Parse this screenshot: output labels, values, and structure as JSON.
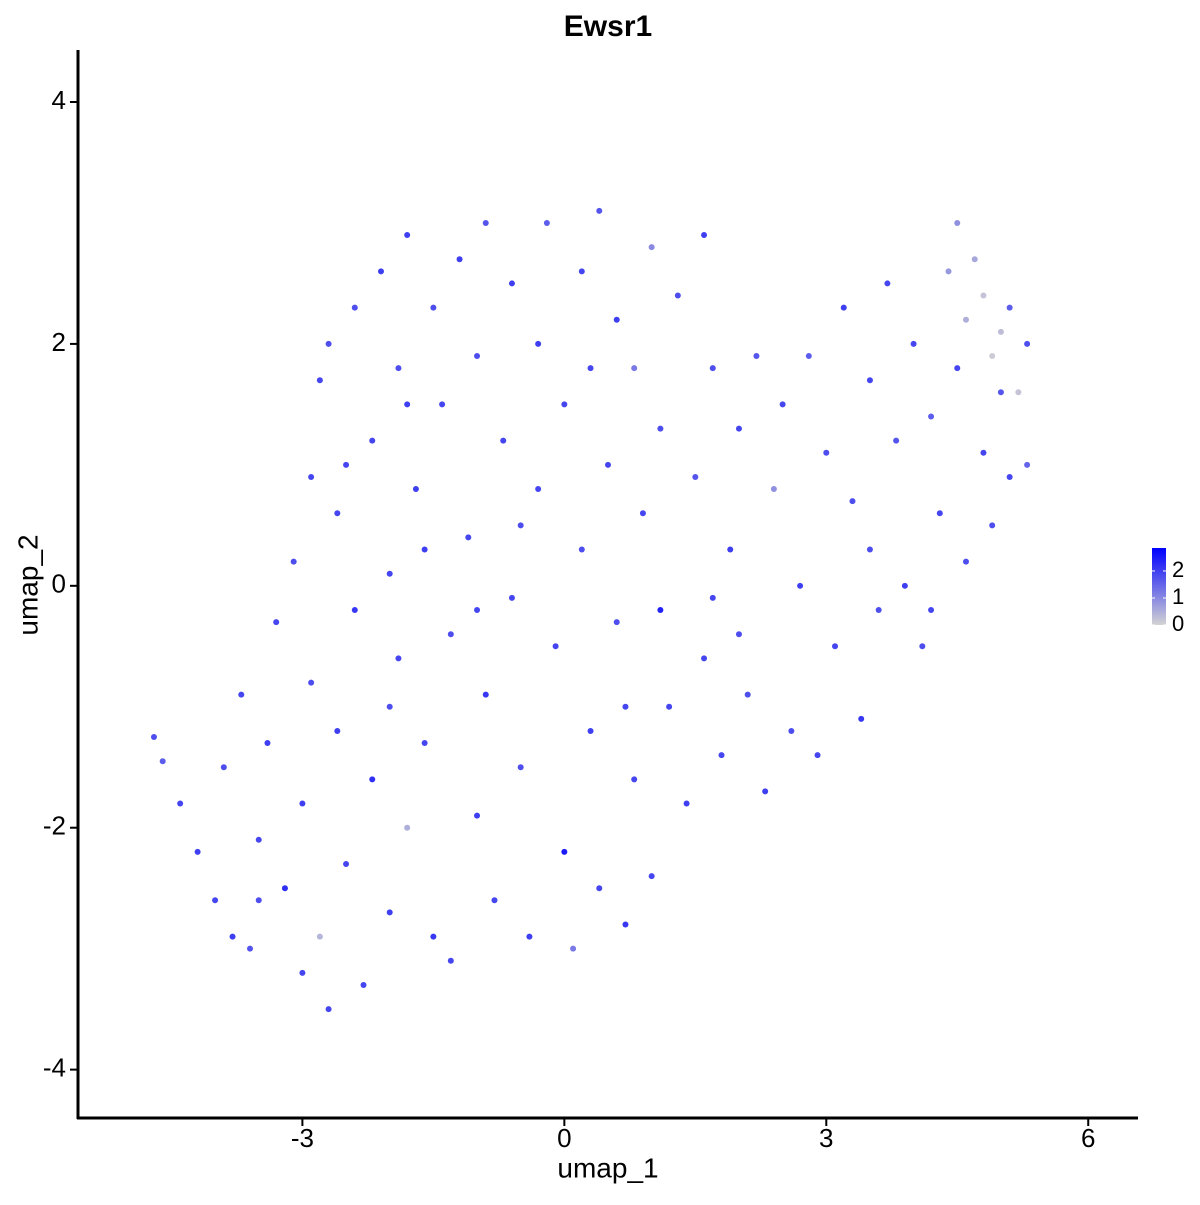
{
  "chart_data": {
    "type": "scatter",
    "title": "Ewsr1",
    "x_label": "umap_1",
    "y_label": "umap_2",
    "xlim": [
      -5.57,
      6.57
    ],
    "ylim": [
      -4.4,
      4.43
    ],
    "xticks": [
      -3,
      0,
      3,
      6
    ],
    "yticks": [
      -4,
      -2,
      0,
      2,
      4
    ],
    "low_color": "#d3d3d3",
    "high_color": "#0000ff",
    "color_lim": [
      0,
      2.85
    ],
    "color_ticks": [
      0,
      1,
      2
    ],
    "x": [
      -4.7,
      -4.6,
      -4.4,
      -4.2,
      -4.0,
      -3.9,
      -3.8,
      -3.6,
      -3.5,
      -3.4,
      -3.3,
      -3.2,
      -3.1,
      -3.0,
      -3.0,
      -2.9,
      -2.9,
      -2.8,
      -2.8,
      -2.7,
      -2.6,
      -2.6,
      -2.5,
      -2.4,
      -2.4,
      -2.3,
      -2.2,
      -2.2,
      -2.1,
      -2.0,
      -2.0,
      -1.9,
      -1.9,
      -1.8,
      -1.8,
      -1.7,
      -1.6,
      -1.5,
      -1.5,
      -1.4,
      -1.3,
      -1.3,
      -1.2,
      -1.1,
      -1.0,
      -1.0,
      -0.9,
      -0.9,
      -0.8,
      -0.7,
      -0.6,
      -0.6,
      -0.5,
      -0.4,
      -0.3,
      -0.3,
      -0.2,
      -0.1,
      0.0,
      0.0,
      0.1,
      0.2,
      0.2,
      0.3,
      0.4,
      0.4,
      0.5,
      0.6,
      0.6,
      0.7,
      0.8,
      0.8,
      0.9,
      1.0,
      1.0,
      1.1,
      1.1,
      1.2,
      1.3,
      1.4,
      1.5,
      1.6,
      1.6,
      1.7,
      1.8,
      1.9,
      2.0,
      2.1,
      2.2,
      2.3,
      2.4,
      2.5,
      2.6,
      2.7,
      2.8,
      2.9,
      3.0,
      3.1,
      3.2,
      3.3,
      3.4,
      3.5,
      3.6,
      3.7,
      3.8,
      3.9,
      4.0,
      4.1,
      4.2,
      4.3,
      4.4,
      4.5,
      4.5,
      4.6,
      4.6,
      4.7,
      4.8,
      4.8,
      4.9,
      4.9,
      5.0,
      5.0,
      5.1,
      5.1,
      5.2,
      5.3,
      5.3,
      -3.7,
      -2.0,
      -1.0,
      0.7,
      -0.5,
      -2.5,
      -3.5,
      -2.7,
      -1.6,
      1.7,
      3.5,
      4.2,
      2.0,
      0.3,
      -1.8
    ],
    "y": [
      -1.25,
      -1.45,
      -1.8,
      -2.2,
      -2.6,
      -1.5,
      -2.9,
      -3.0,
      -2.1,
      -1.3,
      -0.3,
      -2.5,
      0.2,
      -3.2,
      -1.8,
      0.9,
      -0.8,
      1.7,
      -2.9,
      2.0,
      -1.2,
      0.6,
      -2.3,
      -0.2,
      2.3,
      -3.3,
      1.2,
      -1.6,
      2.6,
      0.1,
      -2.7,
      1.8,
      -0.6,
      2.9,
      -2.0,
      0.8,
      -1.3,
      2.3,
      -2.9,
      1.5,
      -0.4,
      -3.1,
      2.7,
      0.4,
      -1.9,
      1.9,
      3.0,
      -0.9,
      -2.6,
      1.2,
      2.5,
      -0.1,
      -1.5,
      -2.9,
      0.8,
      2.0,
      3.0,
      -0.5,
      -2.2,
      1.5,
      -3.0,
      0.3,
      2.6,
      -1.2,
      3.1,
      -2.5,
      1.0,
      -0.3,
      2.2,
      -2.8,
      -1.6,
      1.8,
      0.6,
      2.8,
      -2.4,
      -0.2,
      1.3,
      -1.0,
      2.4,
      -1.8,
      0.9,
      -0.6,
      2.9,
      1.8,
      -1.4,
      0.3,
      1.3,
      -0.9,
      1.9,
      -1.7,
      0.8,
      1.5,
      -1.2,
      0.0,
      1.9,
      -1.4,
      1.1,
      -0.5,
      2.3,
      0.7,
      -1.1,
      1.7,
      -0.2,
      2.5,
      1.2,
      0.0,
      2.0,
      -0.5,
      1.4,
      0.6,
      2.6,
      3.0,
      1.8,
      2.2,
      0.2,
      2.7,
      1.1,
      2.4,
      1.9,
      0.5,
      2.1,
      1.6,
      0.9,
      2.3,
      1.6,
      2.0,
      1.0,
      -0.9,
      -1.0,
      -0.2,
      -1.0,
      0.5,
      1.0,
      -2.6,
      -3.5,
      0.3,
      -0.1,
      0.3,
      -0.2,
      -0.4,
      1.8,
      1.5
    ],
    "values": [
      1.8,
      1.6,
      1.9,
      2.0,
      1.9,
      1.8,
      2.0,
      1.7,
      1.9,
      2.0,
      1.9,
      2.2,
      1.8,
      1.9,
      2.0,
      1.9,
      1.8,
      1.9,
      0.4,
      1.8,
      2.0,
      1.9,
      1.9,
      2.1,
      1.8,
      1.9,
      1.9,
      2.2,
      2.0,
      1.9,
      2.0,
      1.8,
      1.9,
      2.0,
      0.5,
      2.0,
      1.9,
      1.8,
      2.1,
      1.9,
      1.8,
      1.9,
      2.0,
      1.9,
      2.0,
      1.8,
      1.7,
      2.1,
      1.9,
      1.9,
      2.0,
      1.9,
      1.8,
      2.0,
      1.9,
      2.0,
      1.6,
      1.9,
      2.5,
      1.9,
      1.2,
      1.8,
      1.9,
      2.0,
      1.7,
      1.9,
      1.9,
      1.8,
      2.0,
      2.1,
      1.9,
      1.2,
      1.9,
      1.0,
      1.9,
      2.4,
      1.8,
      1.9,
      1.8,
      2.0,
      1.7,
      1.9,
      2.0,
      1.8,
      1.9,
      2.0,
      1.9,
      1.8,
      1.7,
      2.0,
      0.9,
      1.9,
      1.8,
      2.0,
      1.6,
      1.9,
      1.8,
      1.9,
      2.0,
      1.8,
      2.1,
      1.9,
      1.8,
      1.9,
      1.7,
      2.0,
      1.9,
      1.8,
      1.6,
      1.9,
      0.8,
      0.9,
      1.9,
      0.5,
      1.8,
      0.6,
      1.9,
      0.2,
      0.1,
      1.8,
      0.3,
      1.7,
      1.9,
      1.6,
      0.2,
      1.8,
      1.5,
      1.9,
      1.8,
      1.9,
      1.9,
      1.8,
      1.9,
      1.8,
      1.9,
      2.0,
      1.9,
      1.8,
      1.9,
      1.8,
      1.9,
      2.0
    ]
  }
}
